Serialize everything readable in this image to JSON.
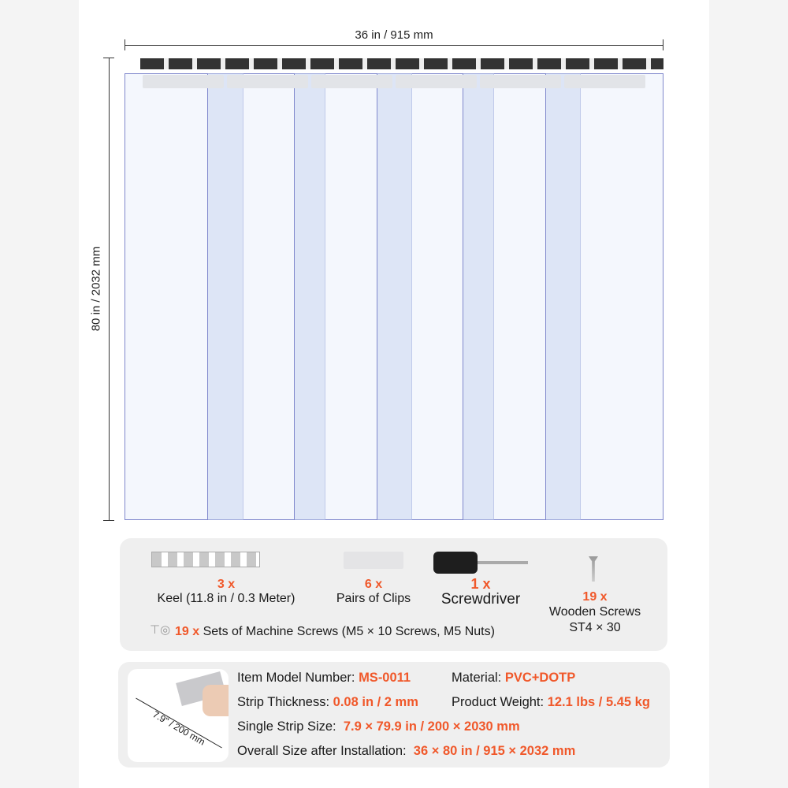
{
  "dimensions": {
    "width": "36 in / 915 mm",
    "height": "80 in / 2032 mm"
  },
  "parts": [
    {
      "qty": "3 x",
      "name": "Keel (11.8 in / 0.3 Meter)",
      "icon": "keel-icon"
    },
    {
      "qty": "6 x",
      "name": "Pairs of Clips",
      "icon": "clips-icon"
    },
    {
      "qty": "1 x",
      "name": "Screwdriver",
      "icon": "screwdriver-icon"
    },
    {
      "qty": "19 x",
      "name": "Wooden Screws",
      "name2": "ST4 × 30",
      "icon": "screw-icon"
    }
  ],
  "machine_screws": {
    "qty": "19 x",
    "name": "Sets of Machine Screws (M5 × 10 Screws, M5 Nuts)"
  },
  "specs": {
    "strip_width_label": "7.9\" / 200 mm",
    "model": {
      "label": "Item Model Number:",
      "value": "MS-0011"
    },
    "material": {
      "label": "Material:",
      "value": "PVC+DOTP"
    },
    "thickness": {
      "label": "Strip Thickness:",
      "value": "0.08 in / 2 mm"
    },
    "weight": {
      "label": "Product Weight:",
      "value": "12.1 lbs / 5.45 kg"
    },
    "single": {
      "label": "Single Strip Size:",
      "value": "7.9 × 79.9 in / 200 × 2030 mm"
    },
    "overall": {
      "label": "Overall Size after Installation:",
      "value": "36 × 80 in / 915 × 2032 mm"
    }
  },
  "colors": {
    "accent": "#f0582a",
    "strip_edge": "#8088cc"
  }
}
